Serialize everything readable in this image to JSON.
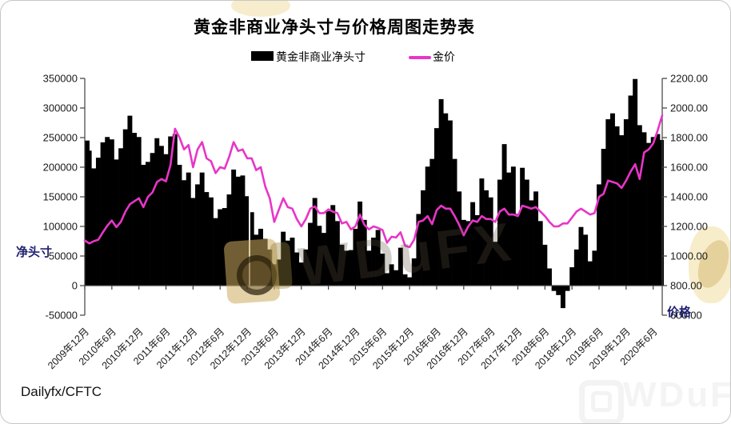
{
  "title": "黄金非商业净头寸与价格周图走势表",
  "source": "Dailyfx/CFTC",
  "watermark": {
    "text": "WDuFX"
  },
  "colors": {
    "bar": "#000000",
    "line": "#E835C8",
    "axis_label": "#1F1F70",
    "axis": "#404040"
  },
  "chart_data": {
    "type": "bar",
    "subtype": "combo bar+line, dual axis, weekly series shown at monthly resolution",
    "x_start": "2009年12月",
    "x_tick_every": 6,
    "x_tick_labels": [
      "2009年12月",
      "2010年6月",
      "2010年12月",
      "2011年6月",
      "2011年12月",
      "2012年6月",
      "2012年12月",
      "2013年6月",
      "2013年12月",
      "2014年6月",
      "2014年12月",
      "2015年6月",
      "2015年12月",
      "2016年6月",
      "2016年12月",
      "2017年6月",
      "2017年12月",
      "2018年6月",
      "2018年12月",
      "2019年6月",
      "2019年12月",
      "2020年6月"
    ],
    "left_axis": {
      "label": "净头寸",
      "min": -50000,
      "max": 350000,
      "step": 50000,
      "ticks": [
        "350000",
        "300000",
        "250000",
        "200000",
        "150000",
        "100000",
        "50000",
        "0",
        "-50000"
      ]
    },
    "right_axis": {
      "label": "价格",
      "min": 600,
      "max": 2200,
      "step": 200,
      "ticks": [
        "2200.00",
        "2000.00",
        "1800.00",
        "1600.00",
        "1400.00",
        "1200.00",
        "1000.00",
        "800.00",
        "600.00"
      ]
    },
    "series": [
      {
        "name": "黄金非商业净头寸",
        "type": "bar",
        "axis": "left",
        "color": "#000000",
        "values": [
          245000,
          228000,
          198000,
          216000,
          242000,
          251000,
          247000,
          213000,
          232000,
          264000,
          287000,
          258000,
          251000,
          204000,
          209000,
          224000,
          249000,
          236000,
          222000,
          252000,
          256000,
          204000,
          178000,
          191000,
          148000,
          171000,
          191000,
          158000,
          149000,
          114000,
          129000,
          131000,
          154000,
          196000,
          184000,
          186000,
          151000,
          124000,
          86000,
          96000,
          79000,
          61000,
          36000,
          44000,
          91000,
          76000,
          81000,
          56000,
          39000,
          61000,
          106000,
          148000,
          101000,
          89000,
          126000,
          136000,
          109000,
          69000,
          59000,
          60000,
          96000,
          142000,
          111000,
          59000,
          81000,
          94000,
          54000,
          21000,
          36000,
          26000,
          64000,
          19000,
          14000,
          46000,
          121000,
          161000,
          201000,
          214000,
          266000,
          315000,
          291000,
          279000,
          214000,
          159000,
          111000,
          109000,
          141000,
          119000,
          181000,
          161000,
          149000,
          74000,
          179000,
          239000,
          191000,
          201000,
          121000,
          199000,
          179000,
          144000,
          159000,
          109000,
          69000,
          29000,
          -9000,
          -16000,
          -38000,
          -9000,
          31000,
          61000,
          99000,
          86000,
          41000,
          59000,
          171000,
          231000,
          281000,
          291000,
          269000,
          254000,
          281000,
          321000,
          349000,
          271000,
          259000,
          241000,
          251000,
          256000,
          246000
        ]
      },
      {
        "name": "金价",
        "type": "line",
        "axis": "right",
        "color": "#E835C8",
        "values": [
          1105,
          1085,
          1100,
          1110,
          1160,
          1205,
          1240,
          1195,
          1230,
          1300,
          1350,
          1370,
          1390,
          1330,
          1400,
          1430,
          1500,
          1520,
          1505,
          1615,
          1860,
          1800,
          1720,
          1750,
          1600,
          1720,
          1770,
          1660,
          1640,
          1560,
          1600,
          1590,
          1670,
          1770,
          1710,
          1720,
          1660,
          1660,
          1580,
          1600,
          1470,
          1390,
          1230,
          1310,
          1390,
          1330,
          1320,
          1250,
          1200,
          1250,
          1320,
          1335,
          1290,
          1290,
          1315,
          1300,
          1290,
          1220,
          1230,
          1180,
          1200,
          1280,
          1210,
          1180,
          1200,
          1190,
          1175,
          1090,
          1130,
          1125,
          1160,
          1070,
          1060,
          1110,
          1230,
          1240,
          1270,
          1215,
          1310,
          1340,
          1320,
          1320,
          1270,
          1210,
          1140,
          1200,
          1240,
          1230,
          1270,
          1250,
          1250,
          1230,
          1300,
          1320,
          1280,
          1280,
          1270,
          1340,
          1330,
          1320,
          1330,
          1300,
          1270,
          1230,
          1200,
          1200,
          1220,
          1220,
          1260,
          1300,
          1320,
          1300,
          1280,
          1290,
          1400,
          1420,
          1510,
          1500,
          1490,
          1460,
          1510,
          1570,
          1620,
          1520,
          1700,
          1720,
          1760,
          1850,
          1950
        ]
      }
    ]
  }
}
